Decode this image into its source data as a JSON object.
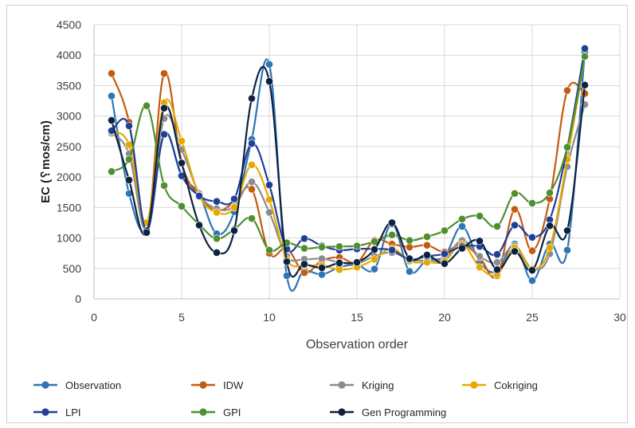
{
  "chart_data": {
    "type": "line",
    "xlabel": "Observation order",
    "ylabel": "EC (␦mos/cm)",
    "xlim": [
      0,
      30
    ],
    "ylim": [
      0,
      4500
    ],
    "xticks": [
      0,
      5,
      10,
      15,
      20,
      25,
      30
    ],
    "yticks": [
      0,
      500,
      1000,
      1500,
      2000,
      2500,
      3000,
      3500,
      4000,
      4500
    ],
    "grid": true,
    "legend_position": "bottom",
    "x": [
      1,
      2,
      3,
      4,
      5,
      6,
      7,
      8,
      9,
      10,
      11,
      12,
      13,
      14,
      15,
      16,
      17,
      18,
      19,
      20,
      21,
      22,
      23,
      24,
      25,
      26,
      27,
      28
    ],
    "series": [
      {
        "name": "Observation",
        "color": "#2e75b6",
        "values": [
          3330,
          1730,
          1150,
          2700,
          2030,
          1720,
          1070,
          1430,
          2620,
          3850,
          380,
          470,
          400,
          520,
          560,
          490,
          1230,
          450,
          640,
          700,
          1190,
          610,
          450,
          900,
          300,
          900,
          800,
          4050
        ]
      },
      {
        "name": "IDW",
        "color": "#c55a11",
        "values": [
          3700,
          2900,
          1150,
          3700,
          2230,
          1680,
          1450,
          1580,
          1800,
          750,
          830,
          430,
          630,
          680,
          600,
          960,
          900,
          850,
          880,
          770,
          900,
          680,
          380,
          1470,
          790,
          1640,
          3420,
          3370
        ]
      },
      {
        "name": "Kriging",
        "color": "#8c8c8c",
        "values": [
          2720,
          2380,
          1130,
          2960,
          2450,
          1730,
          1480,
          1520,
          1920,
          1420,
          700,
          650,
          660,
          600,
          580,
          700,
          760,
          650,
          630,
          660,
          960,
          700,
          600,
          870,
          500,
          740,
          2170,
          3190
        ]
      },
      {
        "name": "Cokriging",
        "color": "#e6a800",
        "values": [
          2750,
          2530,
          1250,
          3220,
          2590,
          1700,
          1420,
          1500,
          2200,
          1630,
          650,
          550,
          550,
          480,
          520,
          650,
          830,
          620,
          600,
          620,
          900,
          520,
          400,
          840,
          490,
          840,
          2290,
          3980
        ]
      },
      {
        "name": "LPI",
        "color": "#1f3f99",
        "values": [
          2760,
          2840,
          1120,
          2700,
          2020,
          1690,
          1600,
          1640,
          2550,
          1870,
          820,
          990,
          870,
          800,
          820,
          820,
          800,
          650,
          700,
          740,
          860,
          860,
          730,
          1210,
          1010,
          1300,
          2480,
          4110
        ]
      },
      {
        "name": "GPI",
        "color": "#4f8f2f",
        "values": [
          2090,
          2290,
          3170,
          1860,
          1520,
          1220,
          990,
          1140,
          1320,
          800,
          920,
          830,
          850,
          860,
          870,
          940,
          1050,
          960,
          1020,
          1120,
          1310,
          1360,
          1190,
          1730,
          1570,
          1740,
          2490,
          3980
        ]
      },
      {
        "name": "Gen Programming",
        "color": "#0d2240",
        "values": [
          2930,
          1950,
          1090,
          3130,
          2230,
          1210,
          760,
          1120,
          3290,
          3570,
          610,
          570,
          510,
          590,
          600,
          810,
          1250,
          660,
          720,
          580,
          830,
          950,
          480,
          780,
          470,
          1200,
          1120,
          3510
        ]
      }
    ]
  }
}
